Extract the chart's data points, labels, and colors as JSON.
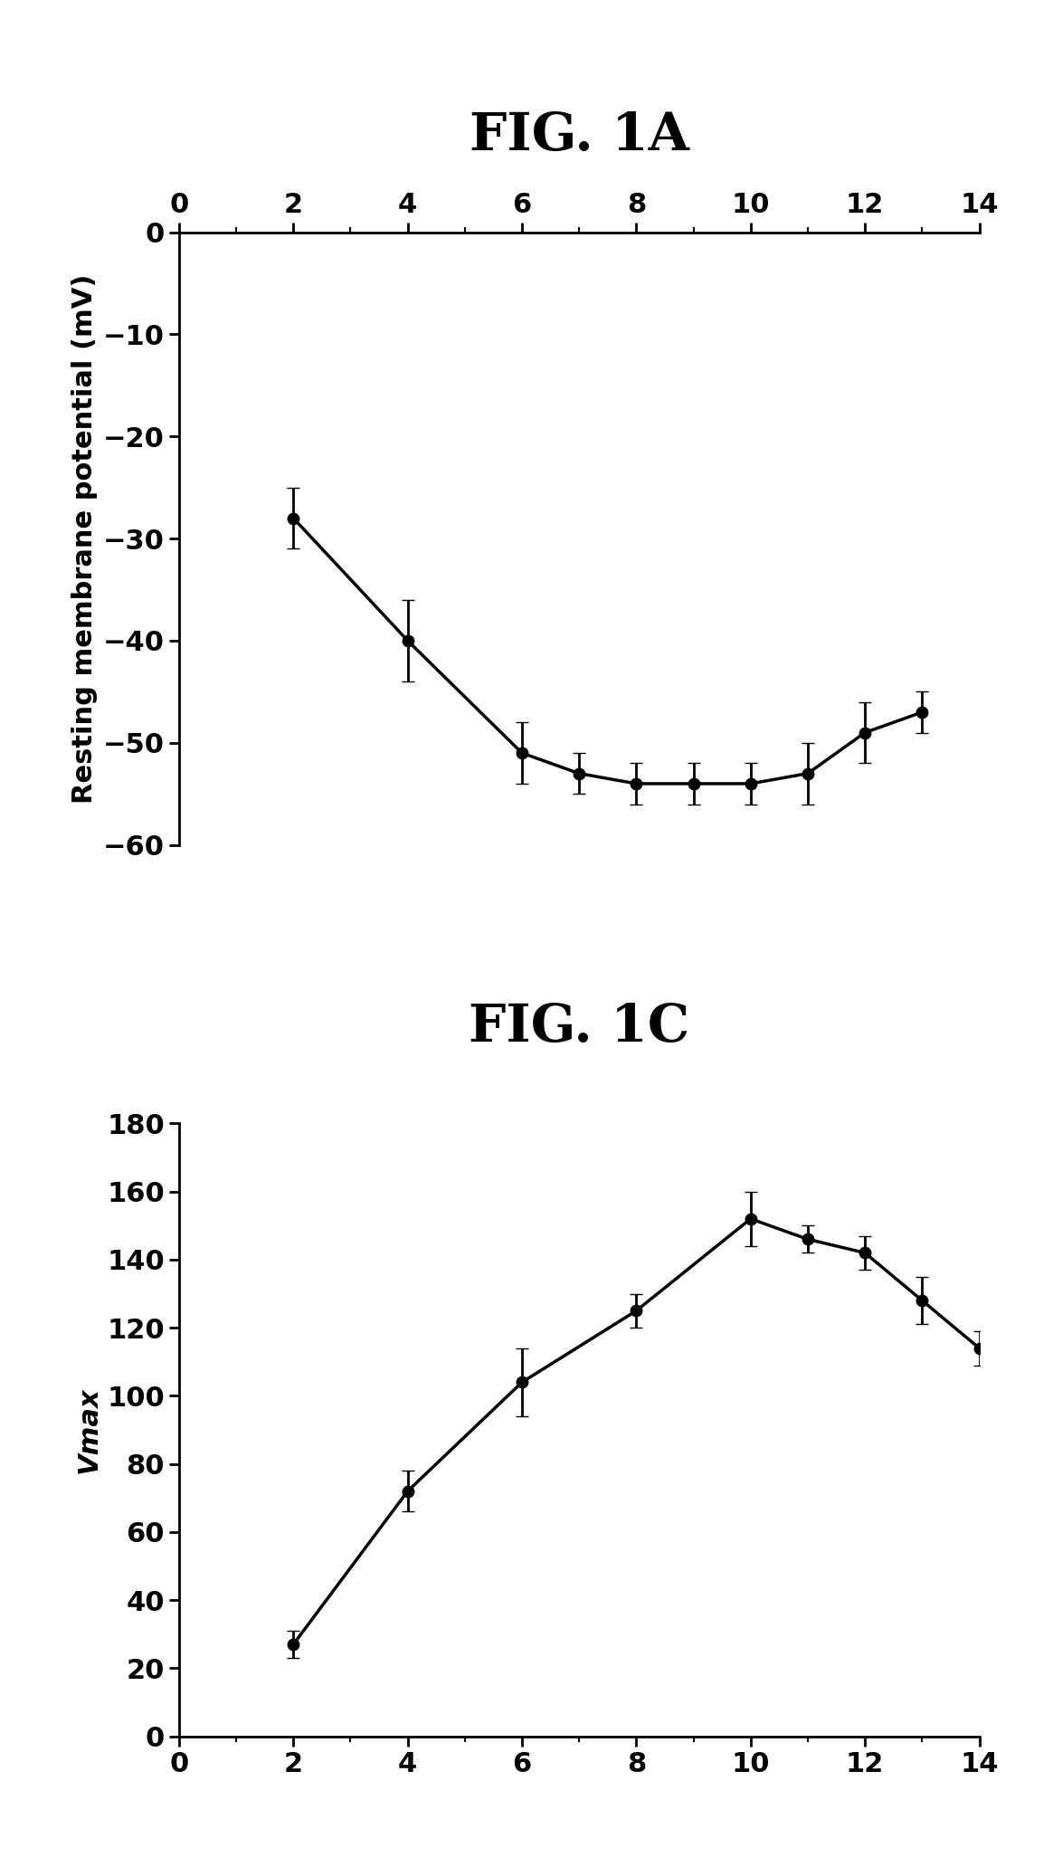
{
  "fig1a": {
    "title": "FIG. 1A",
    "ylabel": "Resting membrane potential (mV)",
    "x": [
      2,
      4,
      6,
      7,
      8,
      9,
      10,
      11,
      12,
      13
    ],
    "y": [
      -28,
      -40,
      -51,
      -53,
      -54,
      -54,
      -54,
      -53,
      -49,
      -47
    ],
    "yerr": [
      3,
      4,
      3,
      2,
      2,
      2,
      2,
      3,
      3,
      2
    ],
    "xlim": [
      0,
      14
    ],
    "ylim": [
      -60,
      0
    ],
    "xticks_major": [
      0,
      2,
      4,
      6,
      8,
      10,
      12,
      14
    ],
    "yticks": [
      0,
      -10,
      -20,
      -30,
      -40,
      -50,
      -60
    ]
  },
  "fig1c": {
    "title": "FIG. 1C",
    "ylabel": "Vmax",
    "x": [
      2,
      4,
      6,
      8,
      10,
      11,
      12,
      13,
      14
    ],
    "y": [
      27,
      72,
      104,
      125,
      152,
      146,
      142,
      128,
      114
    ],
    "yerr": [
      4,
      6,
      10,
      5,
      8,
      4,
      5,
      7,
      5
    ],
    "xlim": [
      0,
      14
    ],
    "ylim": [
      0,
      180
    ],
    "xticks_major": [
      0,
      2,
      4,
      6,
      8,
      10,
      12,
      14
    ],
    "yticks": [
      0,
      20,
      40,
      60,
      80,
      100,
      120,
      140,
      160,
      180
    ]
  },
  "line_color": "#000000",
  "marker_face": "#000000",
  "bg_color": "#ffffff",
  "title_fontsize": 42,
  "label_fontsize": 22,
  "tick_fontsize": 22,
  "linewidth": 2.5,
  "markersize": 9,
  "capsize": 5,
  "elinewidth": 2.0
}
